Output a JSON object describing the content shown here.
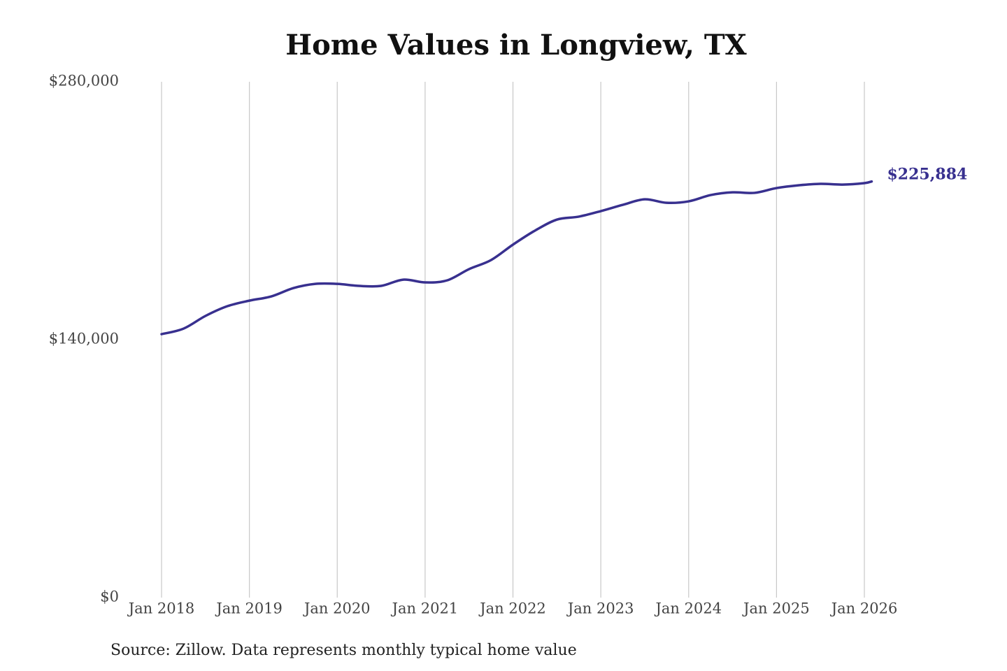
{
  "chart_data": {
    "type": "line",
    "title": "Home Values in Longview, TX",
    "source": "Source: Zillow. Data represents monthly typical home value",
    "x": [
      "2018-01",
      "2018-04",
      "2018-07",
      "2018-10",
      "2019-01",
      "2019-04",
      "2019-07",
      "2019-10",
      "2020-01",
      "2020-04",
      "2020-07",
      "2020-10",
      "2021-01",
      "2021-04",
      "2021-07",
      "2021-10",
      "2022-01",
      "2022-04",
      "2022-07",
      "2022-10",
      "2023-01",
      "2023-04",
      "2023-07",
      "2023-10",
      "2024-01",
      "2024-04",
      "2024-07",
      "2024-10",
      "2025-01",
      "2025-04",
      "2025-07",
      "2025-10",
      "2026-01",
      "2026-02"
    ],
    "series": [
      {
        "name": "Home value",
        "color": "#38308f",
        "values": [
          143000,
          146000,
          152900,
          158200,
          161200,
          163500,
          168000,
          170300,
          170300,
          169200,
          169200,
          172600,
          171100,
          172200,
          178300,
          183200,
          191600,
          199200,
          205200,
          206800,
          209800,
          213200,
          216200,
          214300,
          215100,
          218500,
          220000,
          219700,
          222300,
          223800,
          224600,
          224200,
          225000,
          225884
        ],
        "value_labels": [
          null,
          null,
          null,
          null,
          null,
          null,
          null,
          null,
          null,
          null,
          null,
          null,
          null,
          null,
          null,
          null,
          null,
          null,
          null,
          null,
          null,
          null,
          null,
          null,
          null,
          null,
          null,
          null,
          null,
          null,
          null,
          null,
          null,
          "$225,884"
        ]
      }
    ],
    "xlim": [
      "2018-01",
      "2026-02"
    ],
    "xticks": [
      {
        "value": "2018-01",
        "label": "Jan 2018"
      },
      {
        "value": "2019-01",
        "label": "Jan 2019"
      },
      {
        "value": "2020-01",
        "label": "Jan 2020"
      },
      {
        "value": "2021-01",
        "label": "Jan 2021"
      },
      {
        "value": "2022-01",
        "label": "Jan 2022"
      },
      {
        "value": "2023-01",
        "label": "Jan 2023"
      },
      {
        "value": "2024-01",
        "label": "Jan 2024"
      },
      {
        "value": "2025-01",
        "label": "Jan 2025"
      },
      {
        "value": "2026-01",
        "label": "Jan 2026"
      }
    ],
    "ylim": [
      0,
      280000
    ],
    "yticks": [
      {
        "value": 0,
        "label": "$0"
      },
      {
        "value": 140000,
        "label": "$140,000"
      },
      {
        "value": 280000,
        "label": "$280,000"
      }
    ],
    "grid": "x"
  }
}
